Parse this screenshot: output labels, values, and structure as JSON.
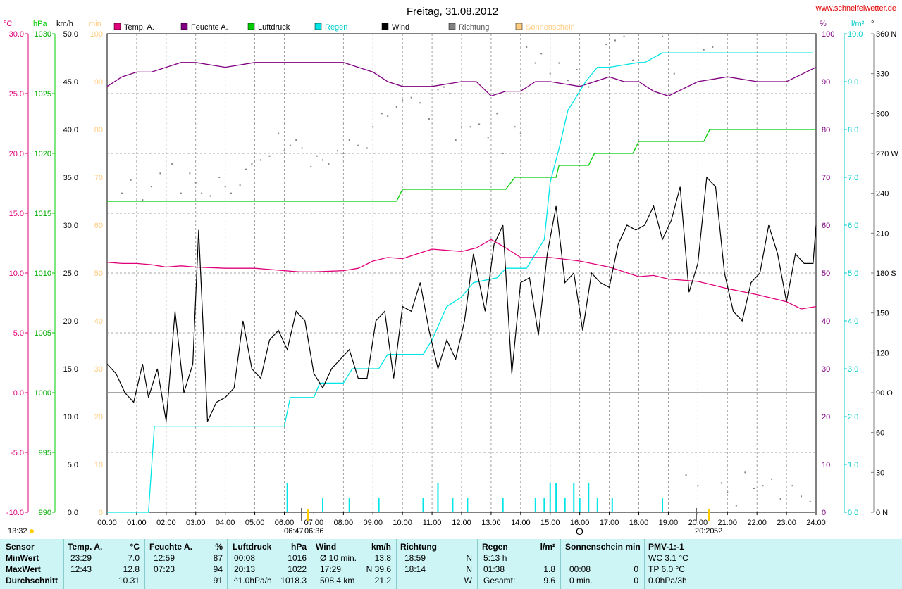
{
  "title": "Freitag, 31.08.2012",
  "website": "www.schneifelwetter.de",
  "colors": {
    "temp": "#e0007a",
    "humidity": "#800080",
    "pressure": "#00cc00",
    "rain": "#00e5e5",
    "wind": "#000000",
    "direction": "#808080",
    "sunshine": "#ffcc80"
  },
  "legend": [
    {
      "label": "Temp. A.",
      "color": "#e0007a"
    },
    {
      "label": "Feuchte A.",
      "color": "#800080"
    },
    {
      "label": "Luftdruck",
      "color": "#00cc00"
    },
    {
      "label": "Regen",
      "color": "#00e5e5"
    },
    {
      "label": "Wind",
      "color": "#000000"
    },
    {
      "label": "Richtung",
      "color": "#808080"
    },
    {
      "label": "Sonnenschein",
      "color": "#ffcc80"
    }
  ],
  "axis_units": {
    "temp": "°C",
    "pressure": "hPa",
    "wind": "km/h",
    "sunshine": "min",
    "humidity": "%",
    "rain": "l/m²",
    "direction": "°"
  },
  "axis_ticks": {
    "temp": [
      "30.0",
      "25.0",
      "20.0",
      "15.0",
      "10.0",
      "5.0",
      "0.0",
      "-5.0",
      "-10.0"
    ],
    "pressure": [
      "1030",
      "1025",
      "1020",
      "1015",
      "1010",
      "1005",
      "1000",
      "995",
      "990"
    ],
    "wind": [
      "50.0",
      "45.0",
      "40.0",
      "35.0",
      "30.0",
      "25.0",
      "20.0",
      "15.0",
      "10.0",
      "5.0",
      "0.0"
    ],
    "sunshine": [
      "100",
      "90",
      "80",
      "70",
      "60",
      "50",
      "40",
      "30",
      "20",
      "10",
      "0"
    ],
    "humidity": [
      "100",
      "90",
      "80",
      "70",
      "60",
      "50",
      "40",
      "30",
      "20",
      "10",
      "0"
    ],
    "rain": [
      "10.0",
      "9.0",
      "8.0",
      "7.0",
      "6.0",
      "5.0",
      "4.0",
      "3.0",
      "2.0",
      "1.0",
      "0.0"
    ],
    "direction": [
      "360 N",
      "330",
      "300",
      "270 W",
      "240",
      "210",
      "180 S",
      "150",
      "120",
      "90 O",
      "60",
      "30",
      "0 N"
    ],
    "x": [
      "00:00",
      "01:00",
      "02:00",
      "03:00",
      "04:00",
      "05:00",
      "06:00",
      "07:00",
      "08:00",
      "09:00",
      "10:00",
      "11:00",
      "12:00",
      "13:00",
      "14:00",
      "15:00",
      "16:00",
      "17:00",
      "18:00",
      "19:00",
      "20:00",
      "21:00",
      "22:00",
      "23:00",
      "24:00"
    ]
  },
  "sun_markers": {
    "current_time": "13:32",
    "sunrise": "06:47",
    "sunrise_alt": "06:36",
    "noon_marker": "O",
    "sunset": "20:20",
    "sunset_alt": "52"
  },
  "chart_data": {
    "type": "line",
    "x_unit": "hours",
    "xlim": [
      0,
      24
    ],
    "grid": true,
    "legend_position": "top",
    "series": [
      {
        "name": "Temp. A.",
        "axis": "temp",
        "ylim": [
          -10,
          30
        ],
        "x": [
          0,
          0.5,
          1,
          1.5,
          2,
          2.5,
          3,
          4,
          5,
          6,
          6.5,
          7,
          8,
          8.5,
          9,
          9.5,
          10,
          10.5,
          11,
          11.5,
          12,
          12.5,
          13,
          13.5,
          14,
          15,
          16,
          17,
          18,
          18.5,
          19,
          20,
          21,
          22,
          23,
          23.5,
          24
        ],
        "y": [
          10.9,
          10.8,
          10.8,
          10.7,
          10.5,
          10.6,
          10.5,
          10.4,
          10.4,
          10.2,
          10.1,
          10.1,
          10.2,
          10.4,
          11.0,
          11.3,
          11.2,
          11.6,
          12.0,
          11.9,
          11.8,
          12.1,
          12.8,
          12.1,
          11.3,
          11.3,
          11.0,
          10.5,
          9.7,
          9.8,
          9.5,
          9.3,
          8.7,
          8.2,
          7.6,
          7.0,
          7.2
        ]
      },
      {
        "name": "Feuchte A.",
        "axis": "humidity",
        "ylim": [
          0,
          100
        ],
        "x": [
          0,
          0.5,
          1,
          1.5,
          2,
          2.5,
          3,
          4,
          5,
          6,
          7,
          7.5,
          8,
          8.5,
          9,
          9.5,
          10,
          11,
          12,
          12.5,
          13,
          13.5,
          14,
          14.5,
          15,
          16,
          17,
          17.5,
          18,
          18.5,
          19,
          20,
          21,
          22,
          23,
          24
        ],
        "y": [
          89,
          91,
          92,
          92,
          93,
          94,
          94,
          93,
          94,
          94,
          94,
          94,
          94,
          93,
          92,
          90,
          89,
          89,
          90,
          90,
          87,
          88,
          88,
          90,
          90,
          89,
          91,
          90,
          90,
          88,
          87,
          90,
          91,
          90,
          90,
          93
        ]
      },
      {
        "name": "Luftdruck",
        "axis": "pressure",
        "ylim": [
          990,
          1030
        ],
        "x": [
          0,
          9.8,
          10,
          13.5,
          13.8,
          15.2,
          15.3,
          16.3,
          16.5,
          17.8,
          18.0,
          20.2,
          20.4,
          24
        ],
        "y": [
          1016,
          1016,
          1017,
          1017,
          1018,
          1018,
          1019,
          1019,
          1020,
          1020,
          1021,
          1021,
          1022,
          1022
        ]
      },
      {
        "name": "Regen",
        "axis": "rain",
        "ylim": [
          0,
          10
        ],
        "x": [
          0,
          1.4,
          1.6,
          6.0,
          6.2,
          7.0,
          7.2,
          8.0,
          8.3,
          9.2,
          9.5,
          10.7,
          11.0,
          11.5,
          12.0,
          12.4,
          13.2,
          13.5,
          14.2,
          14.8,
          15.0,
          15.3,
          15.6,
          15.9,
          16.2,
          16.6,
          17.0,
          18.0,
          18.2,
          18.8,
          20.5,
          23.9
        ],
        "y": [
          0,
          0,
          1.8,
          1.8,
          2.4,
          2.4,
          2.7,
          2.7,
          3.0,
          3.0,
          3.3,
          3.3,
          3.6,
          4.3,
          4.5,
          4.8,
          4.9,
          5.1,
          5.1,
          5.7,
          6.9,
          7.6,
          8.4,
          8.7,
          9.0,
          9.3,
          9.3,
          9.4,
          9.4,
          9.6,
          9.6,
          9.6
        ]
      },
      {
        "name": "Wind",
        "axis": "wind",
        "ylim": [
          0,
          50
        ],
        "x": [
          0,
          0.3,
          0.6,
          0.9,
          1.2,
          1.4,
          1.7,
          2.0,
          2.3,
          2.6,
          2.9,
          3.1,
          3.4,
          3.7,
          4.0,
          4.3,
          4.6,
          4.9,
          5.2,
          5.5,
          5.8,
          6.1,
          6.4,
          6.7,
          7.0,
          7.3,
          7.6,
          7.9,
          8.2,
          8.5,
          8.8,
          9.1,
          9.4,
          9.7,
          10.0,
          10.3,
          10.6,
          10.9,
          11.2,
          11.5,
          11.8,
          12.1,
          12.4,
          12.8,
          13.1,
          13.4,
          13.7,
          14.0,
          14.3,
          14.6,
          14.9,
          15.2,
          15.5,
          15.8,
          16.1,
          16.4,
          16.7,
          17.0,
          17.3,
          17.6,
          17.9,
          18.2,
          18.5,
          18.8,
          19.1,
          19.4,
          19.7,
          20.0,
          20.3,
          20.6,
          20.9,
          21.2,
          21.5,
          21.8,
          22.1,
          22.4,
          22.7,
          23.0,
          23.3,
          23.6,
          23.9,
          24.0
        ],
        "y": [
          15.5,
          14.5,
          12.5,
          11.5,
          15.5,
          12,
          15,
          9.5,
          21,
          12.5,
          15.5,
          29.5,
          9.5,
          11.5,
          12,
          13,
          20,
          15,
          14,
          18,
          19,
          17,
          21,
          20,
          14.5,
          13,
          15,
          16,
          17,
          14,
          14,
          20,
          21,
          14,
          21.5,
          21,
          24,
          19,
          15,
          18,
          16,
          20,
          27,
          21,
          28,
          30,
          14.5,
          24,
          24.5,
          18.5,
          27,
          32,
          24,
          25,
          19,
          25,
          24,
          23.5,
          28,
          30,
          29.5,
          30,
          32,
          28.5,
          30.5,
          34,
          23,
          26,
          35,
          34,
          25,
          21,
          20,
          24,
          25,
          30,
          27,
          22,
          27,
          26,
          26,
          30
        ]
      }
    ],
    "rain_bars": {
      "axis": "rain_events",
      "x": [
        6.1,
        7.3,
        8.2,
        9.2,
        10.7,
        11.2,
        11.7,
        12.2,
        13.4,
        14.5,
        14.8,
        15.0,
        15.2,
        15.5,
        15.8,
        16.0,
        16.3,
        16.6,
        17.1,
        18.8
      ],
      "y": [
        6,
        3,
        3,
        3,
        3,
        6,
        3,
        3,
        3,
        3,
        3,
        6,
        6,
        3,
        6,
        3,
        6,
        3,
        3,
        3
      ]
    },
    "direction_points": {
      "axis": "direction",
      "x": [
        0.5,
        0.8,
        1.2,
        1.5,
        1.8,
        2.2,
        2.5,
        2.8,
        3.0,
        3.2,
        3.5,
        3.8,
        4.0,
        4.2,
        4.5,
        4.7,
        4.9,
        5.2,
        5.5,
        5.8,
        6.0,
        6.2,
        6.4,
        6.6,
        6.9,
        7.1,
        7.3,
        7.5,
        7.8,
        8.0,
        8.2,
        8.5,
        8.8,
        9.0,
        9.3,
        9.5,
        9.8,
        10.0,
        10.3,
        10.6,
        10.9,
        11.2,
        11.4,
        11.6,
        11.8,
        12.0,
        12.3,
        12.6,
        12.9,
        13.2,
        13.4,
        13.8,
        14.0,
        14.2,
        14.5,
        14.7,
        15.0,
        15.3,
        15.6,
        15.9,
        16.3,
        16.6,
        16.9,
        17.2,
        17.5,
        17.8,
        18.1,
        18.5,
        18.8,
        19.2,
        19.6,
        20.0,
        20.2,
        20.5,
        20.8,
        21.0,
        21.3,
        21.6,
        21.9,
        22.2,
        22.5,
        22.8,
        23.2,
        23.5,
        23.8,
        24.0
      ],
      "y": [
        240,
        250,
        235,
        245,
        255,
        262,
        240,
        255,
        248,
        240,
        238,
        252,
        245,
        240,
        246,
        258,
        262,
        265,
        268,
        285,
        272,
        276,
        280,
        274,
        260,
        268,
        265,
        262,
        272,
        270,
        280,
        276,
        274,
        290,
        300,
        298,
        305,
        310,
        312,
        308,
        296,
        318,
        320,
        315,
        280,
        290,
        290,
        292,
        282,
        300,
        270,
        290,
        285,
        350,
        338,
        345,
        330,
        338,
        325,
        333,
        320,
        325,
        352,
        355,
        358,
        340,
        360,
        360,
        358,
        330,
        28,
        20,
        348,
        350,
        22,
        15,
        5,
        30,
        18,
        20,
        25,
        10,
        20,
        12,
        8,
        0
      ]
    },
    "direction_ylim": [
      0,
      360
    ]
  },
  "stats": {
    "headers": {
      "sensor": "Sensor",
      "temp": "Temp. A.",
      "temp_unit": "°C",
      "hum": "Feuchte A.",
      "hum_unit": "%",
      "press": "Luftdruck",
      "press_unit": "hPa",
      "wind": "Wind",
      "wind_unit": "km/h",
      "dir": "Richtung",
      "rain": "Regen",
      "rain_unit": "l/m²",
      "sun": "Sonnenschein min",
      "pmv": "PMV-1:-1"
    },
    "rows": [
      {
        "label": "MinWert",
        "temp_t": "23:29",
        "temp_v": "7.0",
        "hum_t": "12:59",
        "hum_v": "87",
        "press_t": "00:08",
        "press_v": "1016",
        "wind_t": "Ø 10 min.",
        "wind_v": "13.8",
        "dir_t": "18:59",
        "dir_v": "N",
        "rain_t": "5:13 h",
        "rain_v": "",
        "sun_t": "",
        "sun_v": "",
        "pmv": "WC 3.1 °C"
      },
      {
        "label": "MaxWert",
        "temp_t": "12:43",
        "temp_v": "12.8",
        "hum_t": "07:23",
        "hum_v": "94",
        "press_t": "20:13",
        "press_v": "1022",
        "wind_t": "17:29",
        "wind_v": "N 39.6",
        "dir_t": "18:14",
        "dir_v": "N",
        "rain_t": "01:38",
        "rain_v": "1.8",
        "sun_t": "00:08",
        "sun_v": "0",
        "pmv": "TP 6.0 °C"
      },
      {
        "label": "Durchschnitt",
        "temp_t": "",
        "temp_v": "10.31",
        "hum_t": "",
        "hum_v": "91",
        "press_t": "^1.0hPa/h",
        "press_v": "1018.3",
        "wind_t": "508.4 km",
        "wind_v": "21.2",
        "dir_t": "",
        "dir_v": "W",
        "rain_t": "Gesamt:",
        "rain_v": "9.6",
        "sun_t": "0 min.",
        "sun_v": "0",
        "pmv": "0.0hPa/3h"
      }
    ]
  }
}
